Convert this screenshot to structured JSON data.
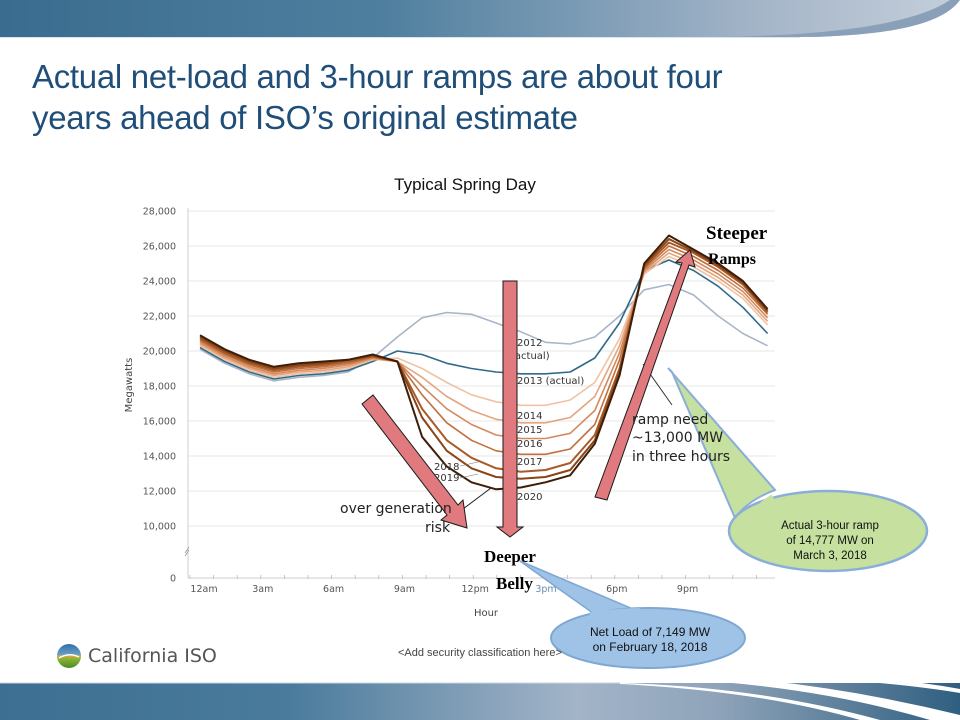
{
  "slide": {
    "title": "Actual net-load and 3-hour ramps are about four years ahead of ISO’s original estimate",
    "title_line1": "Actual net-load and 3-hour ramps are about four",
    "title_line2": "years ahead of ISO’s original estimate",
    "security_classification": "<Add security classification here>",
    "logo_text": "California ISO",
    "colors": {
      "title": "#1f4e79",
      "band_dark": "#3d6f92",
      "band_light": "#a9b9cc",
      "arrow_fill": "#e07a7e",
      "callout_green": "#c6e0a0",
      "callout_blue": "#9fc3e7"
    }
  },
  "annotations": {
    "steeper": "Steeper",
    "ramps": "Ramps",
    "deeper": "Deeper",
    "belly": "Belly",
    "over_generation": "over generation",
    "risk": "risk",
    "ramp_need_1": "ramp need",
    "ramp_need_2": "~13,000 MW",
    "ramp_need_3": "in three hours",
    "callout_green_1": "Actual 3-hour ramp",
    "callout_green_2": "of 14,777 MW on",
    "callout_green_3": "March 3, 2018",
    "callout_blue_1": "Net Load of 7,149 MW",
    "callout_blue_2": "on February 18, 2018"
  },
  "chart_data": {
    "type": "line",
    "title": "Typical Spring Day",
    "xlabel": "Hour",
    "ylabel": "Megawatts",
    "ylim": [
      0,
      28000
    ],
    "y_ticks": [
      "0",
      "10,000",
      "12,000",
      "14,000",
      "16,000",
      "18,000",
      "20,000",
      "22,000",
      "24,000",
      "26,000",
      "28,000"
    ],
    "y_axis_break": "between 0 and 10,000",
    "x_ticks": [
      "12am",
      "3am",
      "6am",
      "9am",
      "12pm",
      "3pm",
      "6pm",
      "9pm"
    ],
    "grid": true,
    "x": [
      0,
      1,
      2,
      3,
      4,
      5,
      6,
      7,
      8,
      9,
      10,
      11,
      12,
      13,
      14,
      15,
      16,
      17,
      18,
      19,
      20,
      21,
      22,
      23
    ],
    "series": [
      {
        "name": "2012 (actual)",
        "color": "#a7b6c8",
        "values": [
          20100,
          19300,
          18700,
          18300,
          18500,
          18600,
          18800,
          19600,
          20800,
          21900,
          22200,
          22100,
          21600,
          21100,
          20500,
          20400,
          20800,
          22000,
          23500,
          23800,
          23200,
          22000,
          21000,
          20300
        ]
      },
      {
        "name": "2013 (actual)",
        "color": "#2f6a8a",
        "values": [
          20200,
          19400,
          18800,
          18400,
          18600,
          18700,
          18900,
          19400,
          20000,
          19800,
          19300,
          19000,
          18800,
          18700,
          18700,
          18800,
          19600,
          21600,
          24600,
          25200,
          24600,
          23700,
          22500,
          21000
        ]
      },
      {
        "name": "2014",
        "color": "#efc3a4",
        "values": [
          20300,
          19500,
          18900,
          18500,
          18700,
          18800,
          19000,
          19500,
          19600,
          19000,
          18200,
          17500,
          17100,
          16900,
          16900,
          17200,
          18200,
          20700,
          24400,
          25400,
          24800,
          24000,
          23000,
          21500
        ]
      },
      {
        "name": "2015",
        "color": "#e4a57f",
        "values": [
          20400,
          19600,
          19000,
          18600,
          18800,
          18900,
          19100,
          19550,
          19400,
          18500,
          17400,
          16600,
          16100,
          15900,
          15900,
          16200,
          17400,
          20300,
          24500,
          25600,
          25000,
          24200,
          23200,
          21700
        ]
      },
      {
        "name": "2016",
        "color": "#d48a5e",
        "values": [
          20500,
          19700,
          19100,
          18700,
          18900,
          19000,
          19200,
          19600,
          19400,
          18000,
          16700,
          15800,
          15200,
          15000,
          15000,
          15300,
          16600,
          19900,
          24600,
          25800,
          25200,
          24400,
          23400,
          21900
        ]
      },
      {
        "name": "2017",
        "color": "#c0713e",
        "values": [
          20600,
          19800,
          19200,
          18800,
          19000,
          19100,
          19300,
          19650,
          19400,
          17500,
          15900,
          14900,
          14300,
          14100,
          14100,
          14400,
          15800,
          19500,
          24700,
          26000,
          25400,
          24600,
          23600,
          22100
        ]
      },
      {
        "name": "2018",
        "color": "#a85a28",
        "values": [
          20700,
          19900,
          19300,
          18900,
          19100,
          19200,
          19400,
          19700,
          19400,
          16700,
          14900,
          13900,
          13300,
          13100,
          13200,
          13600,
          15200,
          19000,
          24800,
          26200,
          25600,
          24800,
          23800,
          22200
        ]
      },
      {
        "name": "2019",
        "color": "#8a4416",
        "values": [
          20800,
          20000,
          19400,
          19000,
          19200,
          19300,
          19500,
          19750,
          19400,
          16200,
          14300,
          13300,
          12800,
          12700,
          12800,
          13200,
          14900,
          18800,
          24900,
          26400,
          25700,
          24900,
          23900,
          22300
        ]
      },
      {
        "name": "2020",
        "color": "#3d1e0a",
        "values": [
          20900,
          20100,
          19500,
          19100,
          19300,
          19400,
          19500,
          19800,
          19400,
          15100,
          13400,
          12500,
          12100,
          12200,
          12500,
          12900,
          14700,
          18600,
          25000,
          26600,
          25800,
          25000,
          24000,
          22400
        ]
      }
    ],
    "annotations": [
      "over generation risk",
      "ramp need ~13,000 MW in three hours",
      "Steeper Ramps",
      "Deeper Belly",
      "Actual 3-hour ramp of 14,777 MW on March 3, 2018",
      "Net Load of 7,149 MW on February 18, 2018"
    ]
  }
}
